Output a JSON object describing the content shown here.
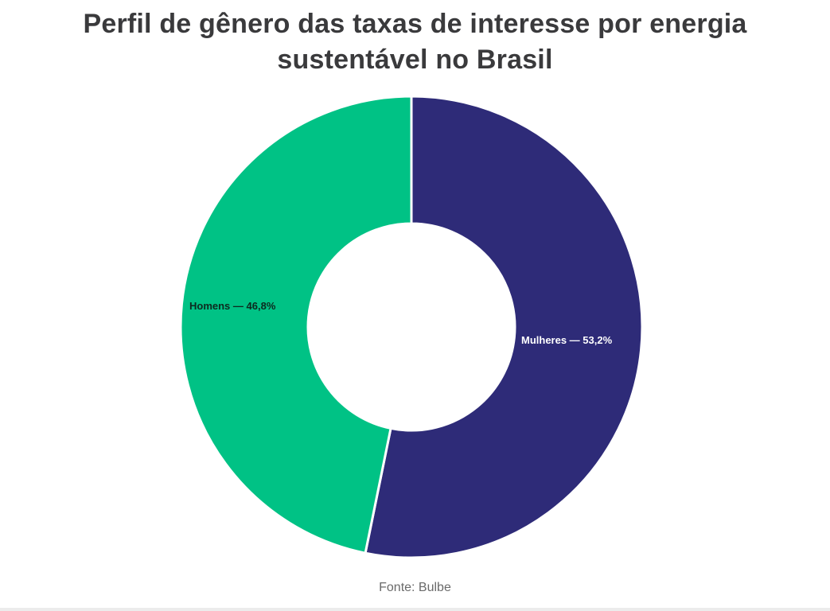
{
  "title": "Perfil de gênero das taxas de interesse por energia sustentável no Brasil",
  "title_lines": [
    "Perfil de gênero das taxas de interesse por energia",
    "sustentável no Brasil"
  ],
  "source": "Fonte: Bulbe",
  "colors": {
    "homens": "#00C285",
    "mulheres": "#2E2B78",
    "title": "#3a3a3c",
    "source": "#6a6a6a"
  },
  "chart_data": {
    "type": "pie",
    "subtype": "donut",
    "title": "Perfil de gênero das taxas de interesse por energia sustentável no Brasil",
    "categories": [
      "Mulheres",
      "Homens"
    ],
    "values": [
      53.2,
      46.8
    ],
    "unit": "%",
    "labels": [
      "Mulheres — 53,2%",
      "Homens — 46,8%"
    ],
    "colors": [
      "#2E2B78",
      "#00C285"
    ],
    "start_angle": "top (12 o'clock), clockwise",
    "legend": "none (inline labels)",
    "source": "Fonte: Bulbe"
  }
}
